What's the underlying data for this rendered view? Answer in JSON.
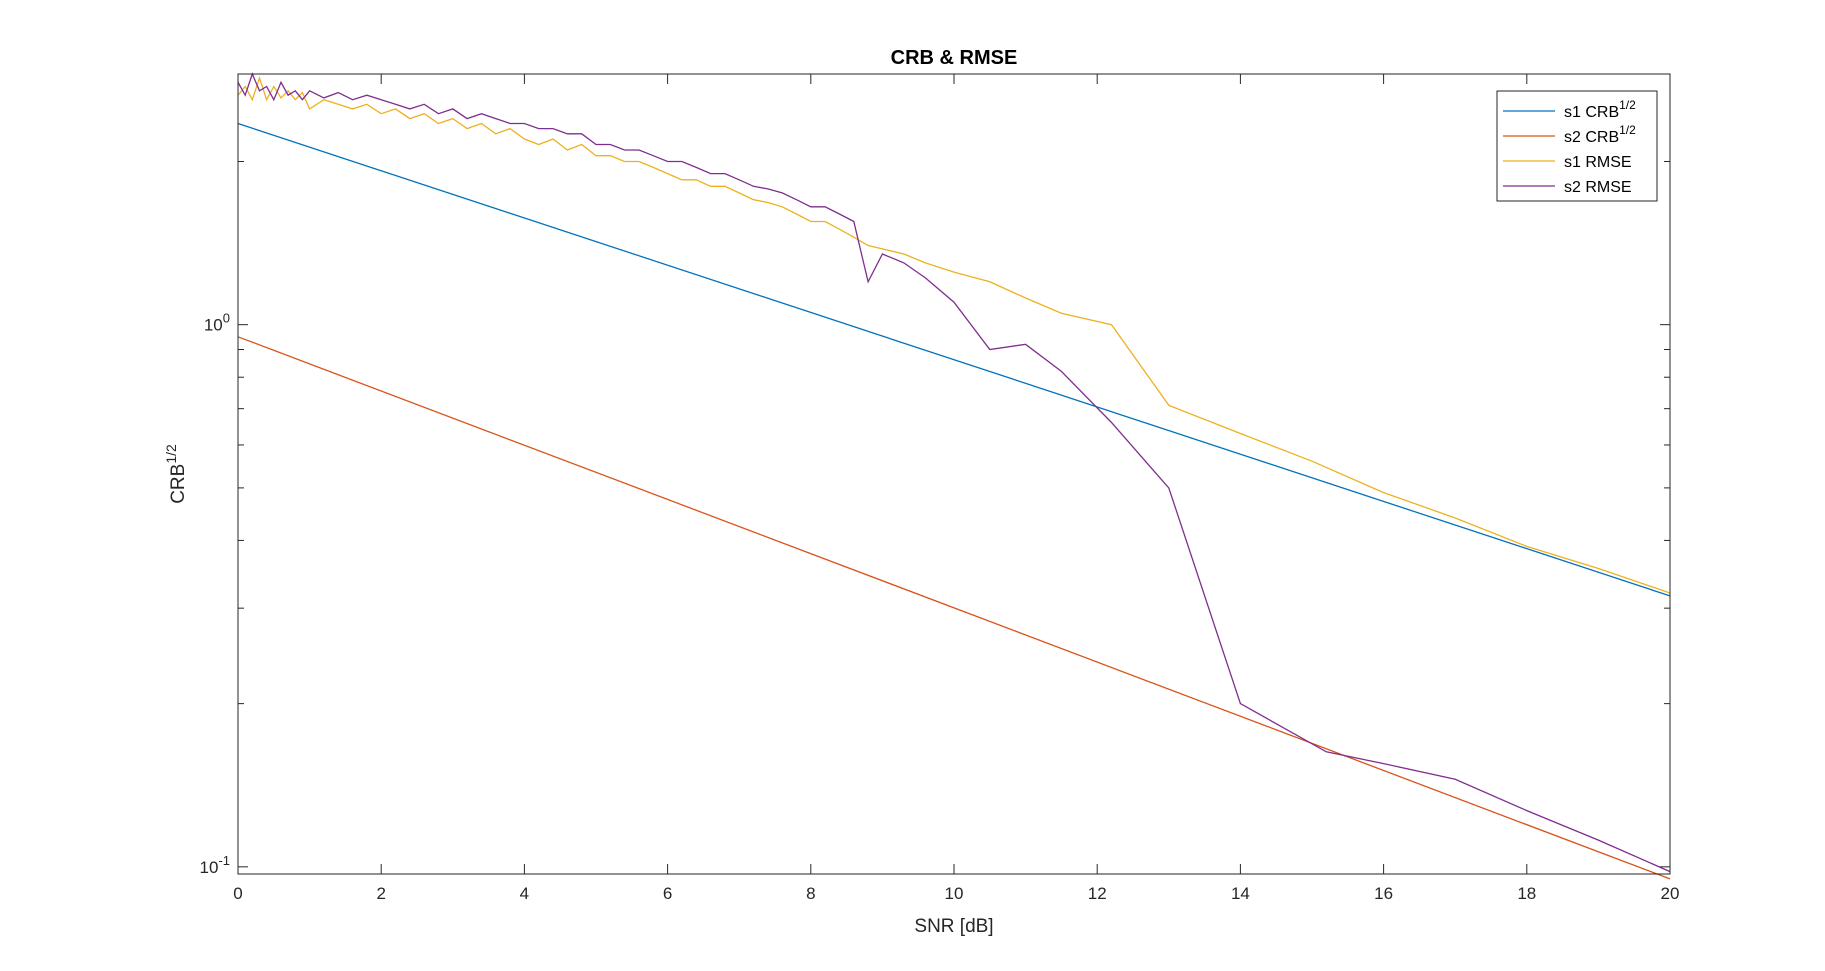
{
  "chart_data": {
    "type": "line",
    "title": "CRB & RMSE",
    "xlabel": "SNR [dB]",
    "ylabel": "CRB",
    "ylabel_superscript": "1/2",
    "y_scale": "log",
    "xlim": [
      0,
      20
    ],
    "ylim": [
      0.097,
      2.9
    ],
    "x_ticks": [
      0,
      2,
      4,
      6,
      8,
      10,
      12,
      14,
      16,
      18,
      20
    ],
    "x_tick_labels": [
      "0",
      "2",
      "4",
      "6",
      "8",
      "10",
      "12",
      "14",
      "16",
      "18",
      "20"
    ],
    "y_ticks": [
      0.1,
      1
    ],
    "y_tick_labels": [
      {
        "base": "10",
        "exp": "-1"
      },
      {
        "base": "10",
        "exp": "0"
      }
    ],
    "grid": false,
    "legend_position": "top-right",
    "series": [
      {
        "name": "s1 CRB",
        "name_superscript": "1/2",
        "color": "#0072BD",
        "x": [
          0,
          20
        ],
        "y": [
          2.35,
          0.316
        ]
      },
      {
        "name": "s2 CRB",
        "name_superscript": "1/2",
        "color": "#D95319",
        "x": [
          0,
          20
        ],
        "y": [
          0.95,
          0.095
        ]
      },
      {
        "name": "s1 RMSE",
        "name_superscript": "",
        "color": "#EDB120",
        "x": [
          0,
          0.1,
          0.2,
          0.3,
          0.4,
          0.5,
          0.6,
          0.7,
          0.8,
          0.9,
          1.0,
          1.2,
          1.4,
          1.6,
          1.8,
          2.0,
          2.2,
          2.4,
          2.6,
          2.8,
          3.0,
          3.2,
          3.4,
          3.6,
          3.8,
          4.0,
          4.2,
          4.4,
          4.6,
          4.8,
          5.0,
          5.2,
          5.4,
          5.6,
          5.8,
          6.0,
          6.2,
          6.4,
          6.6,
          6.8,
          7.0,
          7.2,
          7.4,
          7.6,
          7.8,
          8.0,
          8.2,
          8.4,
          8.6,
          8.8,
          9.0,
          9.3,
          9.6,
          10.0,
          10.5,
          11.0,
          11.5,
          12.2,
          13.0,
          14.0,
          15.0,
          16.0,
          17.0,
          18.0,
          19.0,
          20.0
        ],
        "y": [
          2.65,
          2.75,
          2.6,
          2.85,
          2.6,
          2.75,
          2.62,
          2.7,
          2.6,
          2.68,
          2.5,
          2.6,
          2.55,
          2.5,
          2.55,
          2.45,
          2.5,
          2.4,
          2.45,
          2.35,
          2.4,
          2.3,
          2.35,
          2.25,
          2.3,
          2.2,
          2.15,
          2.2,
          2.1,
          2.15,
          2.05,
          2.05,
          2.0,
          2.0,
          1.95,
          1.9,
          1.85,
          1.85,
          1.8,
          1.8,
          1.75,
          1.7,
          1.68,
          1.65,
          1.6,
          1.55,
          1.55,
          1.5,
          1.45,
          1.4,
          1.38,
          1.35,
          1.3,
          1.25,
          1.2,
          1.12,
          1.05,
          1.0,
          0.71,
          0.63,
          0.56,
          0.49,
          0.44,
          0.39,
          0.355,
          0.32
        ]
      },
      {
        "name": "s2 RMSE",
        "name_superscript": "",
        "color": "#7E2F8E",
        "x": [
          0,
          0.1,
          0.2,
          0.3,
          0.4,
          0.5,
          0.6,
          0.7,
          0.8,
          0.9,
          1.0,
          1.2,
          1.4,
          1.6,
          1.8,
          2.0,
          2.2,
          2.4,
          2.6,
          2.8,
          3.0,
          3.2,
          3.4,
          3.6,
          3.8,
          4.0,
          4.2,
          4.4,
          4.6,
          4.8,
          5.0,
          5.2,
          5.4,
          5.6,
          5.8,
          6.0,
          6.2,
          6.4,
          6.6,
          6.8,
          7.0,
          7.2,
          7.4,
          7.6,
          7.8,
          8.0,
          8.2,
          8.4,
          8.6,
          8.8,
          9.0,
          9.3,
          9.6,
          10.0,
          10.5,
          11.0,
          11.5,
          12.2,
          13.0,
          14.0,
          15.2,
          16.0,
          17.0,
          18.0,
          19.0,
          20.0
        ],
        "y": [
          2.8,
          2.65,
          2.9,
          2.7,
          2.75,
          2.6,
          2.8,
          2.65,
          2.7,
          2.6,
          2.7,
          2.62,
          2.68,
          2.6,
          2.65,
          2.6,
          2.55,
          2.5,
          2.55,
          2.45,
          2.5,
          2.4,
          2.45,
          2.4,
          2.35,
          2.35,
          2.3,
          2.3,
          2.25,
          2.25,
          2.15,
          2.15,
          2.1,
          2.1,
          2.05,
          2.0,
          2.0,
          1.95,
          1.9,
          1.9,
          1.85,
          1.8,
          1.78,
          1.75,
          1.7,
          1.65,
          1.65,
          1.6,
          1.55,
          1.2,
          1.35,
          1.3,
          1.22,
          1.1,
          0.9,
          0.92,
          0.82,
          0.66,
          0.5,
          0.2,
          0.163,
          0.155,
          0.145,
          0.127,
          0.112,
          0.098
        ]
      }
    ]
  }
}
